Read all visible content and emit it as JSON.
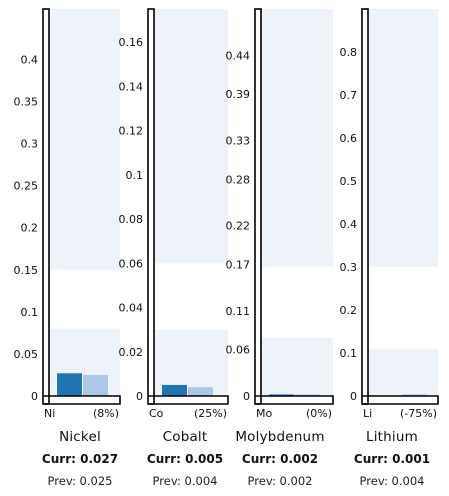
{
  "colors": {
    "current": "#2274b5",
    "previous": "#aec7e8",
    "band": "#eef2f9",
    "axis": "#000000"
  },
  "curr_prefix": "Curr:",
  "prev_prefix": "Prev:",
  "chart_data": [
    {
      "type": "bar",
      "name": "Nickel",
      "symbol": "Ni",
      "change": "(8%)",
      "curr_label": "0.027",
      "prev_label": "0.025",
      "series": [
        {
          "key": "current",
          "values": [
            0.027
          ]
        },
        {
          "key": "previous",
          "values": [
            0.025
          ]
        }
      ],
      "ylim": [
        0,
        0.46
      ],
      "yticks": [
        0,
        0.05,
        0.1,
        0.15,
        0.2,
        0.25,
        0.3,
        0.35,
        0.4
      ],
      "ytick_labels": [
        "0",
        "0.05",
        "0.1",
        "0.15",
        "0.2",
        "0.25",
        "0.3",
        "0.35",
        "0.4"
      ],
      "bands": [
        [
          0,
          0.08
        ],
        [
          0.15,
          0.46
        ]
      ]
    },
    {
      "type": "bar",
      "name": "Cobalt",
      "symbol": "Co",
      "change": "(25%)",
      "curr_label": "0.005",
      "prev_label": "0.004",
      "series": [
        {
          "key": "current",
          "values": [
            0.005
          ]
        },
        {
          "key": "previous",
          "values": [
            0.004
          ]
        }
      ],
      "ylim": [
        0,
        0.175
      ],
      "yticks": [
        0,
        0.02,
        0.04,
        0.06,
        0.08,
        0.1,
        0.12,
        0.14,
        0.16
      ],
      "ytick_labels": [
        "0",
        "0.02",
        "0.04",
        "0.06",
        "0.08",
        "0.1",
        "0.12",
        "0.14",
        "0.16"
      ],
      "bands": [
        [
          0,
          0.03
        ],
        [
          0.06,
          0.175
        ]
      ]
    },
    {
      "type": "bar",
      "name": "Molybdenum",
      "symbol": "Mo",
      "change": "(0%)",
      "curr_label": "0.002",
      "prev_label": "0.002",
      "series": [
        {
          "key": "current",
          "values": [
            0.002
          ]
        },
        {
          "key": "previous",
          "values": [
            0.002
          ]
        }
      ],
      "ylim": [
        0,
        0.5
      ],
      "yticks": [
        0,
        0.06,
        0.11,
        0.17,
        0.22,
        0.28,
        0.33,
        0.39,
        0.44
      ],
      "ytick_labels": [
        "0",
        "0.06",
        "0.11",
        "0.17",
        "0.22",
        "0.28",
        "0.33",
        "0.39",
        "0.44"
      ],
      "bands": [
        [
          0,
          0.075
        ],
        [
          0.167,
          0.5
        ]
      ]
    },
    {
      "type": "bar",
      "name": "Lithium",
      "symbol": "Li",
      "change": "(-75%)",
      "curr_label": "0.001",
      "prev_label": "0.004",
      "series": [
        {
          "key": "current",
          "values": [
            0.001
          ]
        },
        {
          "key": "previous",
          "values": [
            0.004
          ]
        }
      ],
      "ylim": [
        0,
        0.9
      ],
      "yticks": [
        0,
        0.1,
        0.2,
        0.3,
        0.4,
        0.5,
        0.6,
        0.7,
        0.8
      ],
      "ytick_labels": [
        "0",
        "0.1",
        "0.2",
        "0.3",
        "0.4",
        "0.5",
        "0.6",
        "0.7",
        "0.8"
      ],
      "bands": [
        [
          0,
          0.11
        ],
        [
          0.3,
          0.9
        ]
      ]
    }
  ]
}
